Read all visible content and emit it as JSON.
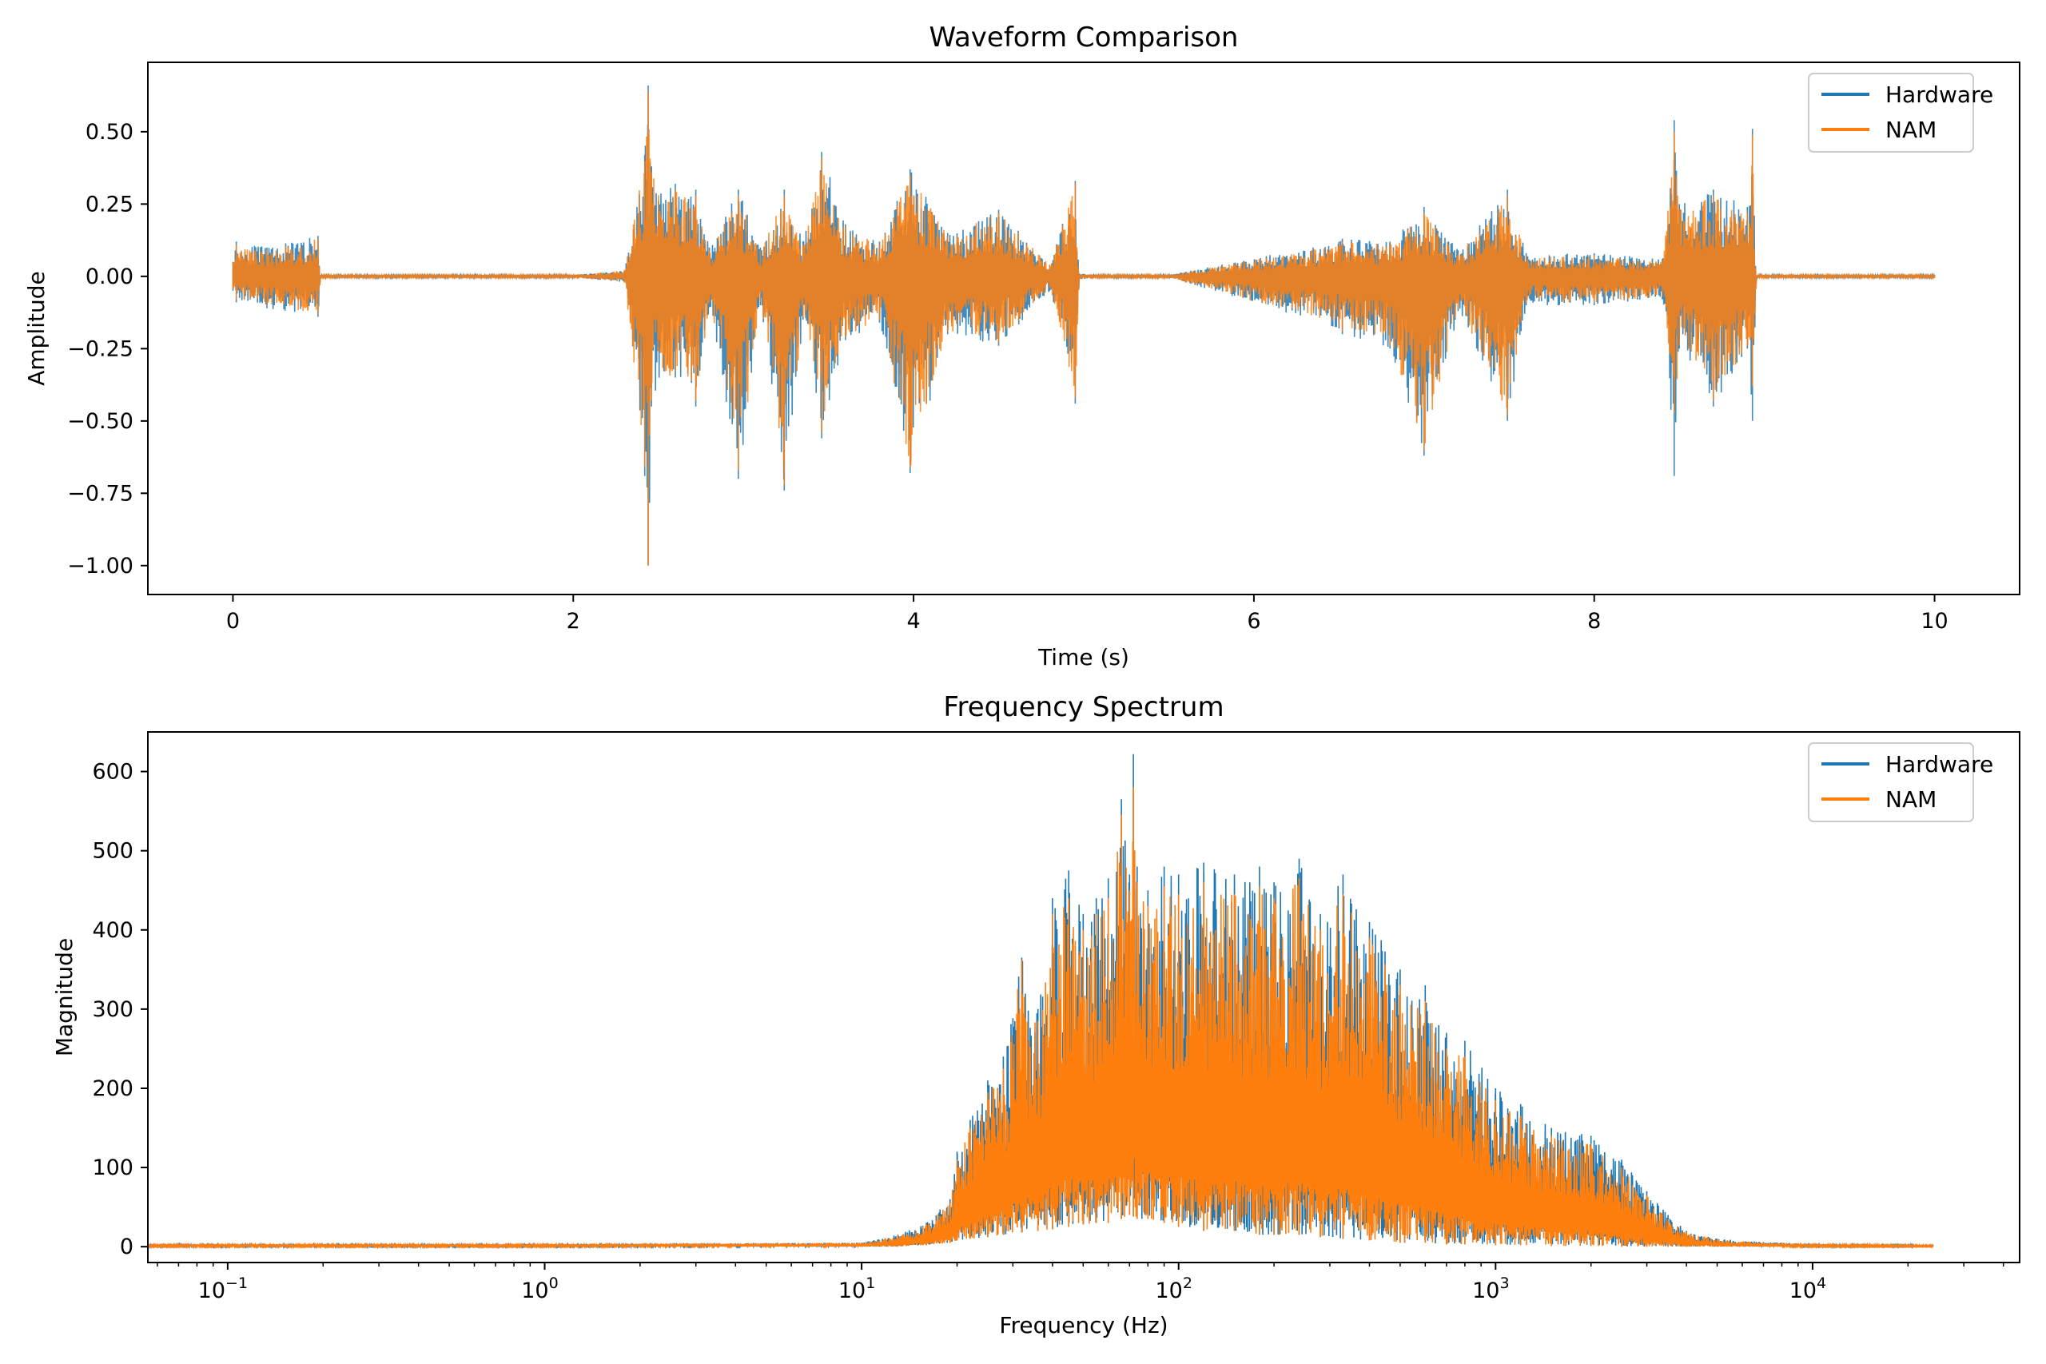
{
  "colors": {
    "hardware": "#1f77b4",
    "nam": "#ff7f0e",
    "axes": "#000000",
    "background": "#ffffff"
  },
  "chart_data": [
    {
      "type": "line",
      "title": "Waveform Comparison",
      "xlabel": "Time (s)",
      "ylabel": "Amplitude",
      "xlim": [
        -0.5,
        10.5
      ],
      "ylim": [
        -1.1,
        0.74
      ],
      "xticks": [
        0,
        2,
        4,
        6,
        8,
        10
      ],
      "xtick_labels": [
        "0",
        "2",
        "4",
        "6",
        "8",
        "10"
      ],
      "yticks": [
        0.5,
        0.25,
        0.0,
        -0.25,
        -0.5,
        -0.75,
        -1.0
      ],
      "ytick_labels": [
        "0.50",
        "0.25",
        "0.00",
        "−0.25",
        "−0.50",
        "−0.75",
        "−1.00"
      ],
      "grid": false,
      "legend_position": "upper right",
      "series": [
        {
          "name": "Hardware",
          "color": "#1f77b4",
          "envelope": {
            "x": [
              0.0,
              0.02,
              0.2,
              0.5,
              0.51,
              2.0,
              2.3,
              2.42,
              2.44,
              2.46,
              2.6,
              2.72,
              2.8,
              2.97,
              3.1,
              3.24,
              3.35,
              3.46,
              3.6,
              3.8,
              3.98,
              4.2,
              4.5,
              4.8,
              4.95,
              4.97,
              5.1,
              5.5,
              6.5,
              6.52,
              6.8,
              7.0,
              7.2,
              7.49,
              7.6,
              8.0,
              8.4,
              8.47,
              8.5,
              8.7,
              8.9,
              8.93,
              8.95,
              10.0
            ],
            "max": [
              0.05,
              0.12,
              0.1,
              0.14,
              0.005,
              0.005,
              0.02,
              0.42,
              0.66,
              0.38,
              0.32,
              0.3,
              0.1,
              0.3,
              0.1,
              0.3,
              0.12,
              0.43,
              0.18,
              0.12,
              0.37,
              0.15,
              0.23,
              0.04,
              0.33,
              0.01,
              0.005,
              0.005,
              0.12,
              0.13,
              0.12,
              0.24,
              0.09,
              0.3,
              0.08,
              0.08,
              0.06,
              0.54,
              0.25,
              0.3,
              0.24,
              0.51,
              0.005,
              0.005
            ],
            "min": [
              -0.05,
              -0.09,
              -0.11,
              -0.14,
              -0.005,
              -0.005,
              -0.02,
              -0.69,
              -1.0,
              -0.45,
              -0.35,
              -0.45,
              -0.1,
              -0.7,
              -0.1,
              -0.74,
              -0.15,
              -0.56,
              -0.22,
              -0.16,
              -0.68,
              -0.2,
              -0.24,
              -0.05,
              -0.44,
              -0.01,
              -0.005,
              -0.005,
              -0.18,
              -0.2,
              -0.25,
              -0.62,
              -0.12,
              -0.5,
              -0.1,
              -0.1,
              -0.08,
              -0.69,
              -0.25,
              -0.45,
              -0.25,
              -0.5,
              -0.005,
              -0.005
            ]
          }
        },
        {
          "name": "NAM",
          "color": "#ff7f0e",
          "envelope": {
            "x": [
              0.0,
              0.02,
              0.2,
              0.5,
              0.51,
              2.0,
              2.3,
              2.42,
              2.44,
              2.46,
              2.6,
              2.72,
              2.8,
              2.97,
              3.1,
              3.24,
              3.35,
              3.46,
              3.6,
              3.8,
              3.98,
              4.2,
              4.5,
              4.8,
              4.95,
              4.97,
              5.1,
              5.5,
              6.5,
              6.52,
              6.8,
              7.0,
              7.2,
              7.49,
              7.6,
              8.0,
              8.4,
              8.47,
              8.5,
              8.7,
              8.9,
              8.93,
              8.95,
              10.0
            ],
            "max": [
              0.045,
              0.11,
              0.09,
              0.13,
              0.005,
              0.005,
              0.02,
              0.4,
              0.64,
              0.36,
              0.3,
              0.28,
              0.09,
              0.28,
              0.09,
              0.28,
              0.11,
              0.41,
              0.17,
              0.11,
              0.35,
              0.14,
              0.22,
              0.04,
              0.32,
              0.01,
              0.005,
              0.005,
              0.11,
              0.12,
              0.11,
              0.22,
              0.08,
              0.28,
              0.07,
              0.07,
              0.05,
              0.5,
              0.23,
              0.28,
              0.22,
              0.49,
              0.005,
              0.005
            ],
            "min": [
              -0.045,
              -0.08,
              -0.1,
              -0.13,
              -0.005,
              -0.005,
              -0.02,
              -0.66,
              -1.0,
              -0.43,
              -0.33,
              -0.43,
              -0.09,
              -0.67,
              -0.09,
              -0.72,
              -0.14,
              -0.54,
              -0.21,
              -0.15,
              -0.66,
              -0.19,
              -0.23,
              -0.04,
              -0.42,
              -0.01,
              -0.005,
              -0.005,
              -0.17,
              -0.19,
              -0.24,
              -0.6,
              -0.11,
              -0.48,
              -0.09,
              -0.09,
              -0.07,
              -0.47,
              -0.24,
              -0.43,
              -0.24,
              -0.38,
              -0.005,
              -0.005
            ]
          }
        }
      ]
    },
    {
      "type": "line",
      "title": "Frequency Spectrum",
      "xlabel": "Frequency (Hz)",
      "ylabel": "Magnitude",
      "xscale": "log",
      "xlim": [
        0.056,
        45000
      ],
      "ylim": [
        -20,
        650
      ],
      "xticks": [
        0.1,
        1,
        10,
        100,
        1000,
        10000
      ],
      "xtick_labels": [
        {
          "base": "10",
          "exp": "−1"
        },
        {
          "base": "10",
          "exp": "0"
        },
        {
          "base": "10",
          "exp": "1"
        },
        {
          "base": "10",
          "exp": "2"
        },
        {
          "base": "10",
          "exp": "3"
        },
        {
          "base": "10",
          "exp": "4"
        }
      ],
      "yticks": [
        0,
        100,
        200,
        300,
        400,
        500,
        600
      ],
      "ytick_labels": [
        "0",
        "100",
        "200",
        "300",
        "400",
        "500",
        "600"
      ],
      "grid": false,
      "legend_position": "upper right",
      "series": [
        {
          "name": "Hardware",
          "color": "#1f77b4",
          "envelope": {
            "freq": [
              0.056,
              1,
              10,
              13,
              16,
              19,
              20,
              22,
              25,
              28,
              32,
              36,
              40,
              45,
              50,
              55,
              60,
              66,
              70,
              72,
              74,
              80,
              90,
              100,
              120,
              150,
              180,
              200,
              240,
              280,
              330,
              400,
              500,
              600,
              700,
              800,
              1000,
              1200,
              1500,
              2000,
              2500,
              3000,
              3500,
              4000,
              5000,
              7000,
              10000,
              24000
            ],
            "max": [
              3,
              3,
              5,
              15,
              30,
              60,
              120,
              160,
              210,
              240,
              365,
              300,
              440,
              475,
              420,
              440,
              465,
              565,
              470,
              622,
              480,
              450,
              480,
              470,
              485,
              470,
              480,
              460,
              490,
              420,
              470,
              410,
              350,
              330,
              270,
              260,
              200,
              180,
              150,
              140,
              110,
              70,
              40,
              20,
              10,
              6,
              3,
              2
            ],
            "min": [
              0,
              0,
              0,
              0,
              2,
              5,
              8,
              10,
              12,
              15,
              18,
              20,
              22,
              25,
              28,
              30,
              30,
              35,
              40,
              38,
              35,
              35,
              30,
              25,
              20,
              20,
              15,
              15,
              15,
              12,
              10,
              8,
              5,
              5,
              3,
              3,
              2,
              2,
              1,
              1,
              0,
              0,
              0,
              0,
              0,
              0,
              0,
              0
            ]
          }
        },
        {
          "name": "NAM",
          "color": "#ff7f0e",
          "envelope": {
            "freq": [
              0.056,
              1,
              10,
              13,
              16,
              19,
              20,
              22,
              25,
              28,
              32,
              36,
              40,
              45,
              50,
              55,
              60,
              66,
              70,
              72,
              74,
              80,
              90,
              100,
              120,
              150,
              180,
              200,
              240,
              280,
              330,
              400,
              500,
              600,
              700,
              800,
              1000,
              1200,
              1500,
              2000,
              2500,
              3000,
              3500,
              4000,
              5000,
              7000,
              10000,
              24000
            ],
            "max": [
              3,
              3,
              5,
              14,
              28,
              55,
              110,
              150,
              195,
              225,
              362,
              285,
              420,
              440,
              400,
              420,
              440,
              545,
              450,
              580,
              460,
              430,
              455,
              445,
              460,
              445,
              455,
              440,
              465,
              400,
              445,
              390,
              330,
              310,
              250,
              240,
              185,
              165,
              140,
              130,
              100,
              65,
              35,
              18,
              9,
              5,
              3,
              2
            ],
            "min": [
              0,
              0,
              0,
              0,
              2,
              5,
              8,
              10,
              12,
              15,
              18,
              20,
              22,
              25,
              28,
              30,
              30,
              35,
              40,
              38,
              35,
              35,
              30,
              25,
              20,
              20,
              15,
              15,
              15,
              12,
              10,
              8,
              5,
              5,
              3,
              3,
              2,
              2,
              1,
              1,
              0,
              0,
              0,
              0,
              0,
              0,
              0,
              0
            ]
          }
        }
      ]
    }
  ]
}
